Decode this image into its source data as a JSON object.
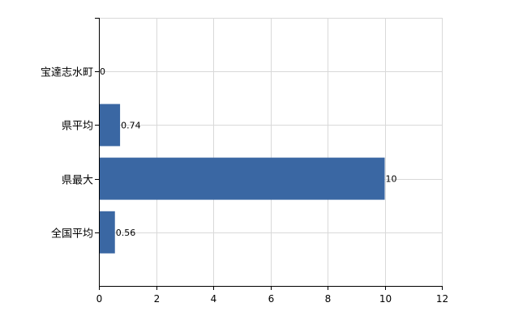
{
  "chart_data": {
    "type": "bar",
    "orientation": "horizontal",
    "categories": [
      "宝達志水町",
      "県平均",
      "県最大",
      "全国平均"
    ],
    "values": [
      0,
      0.74,
      10,
      0.56
    ],
    "data_labels": [
      "0",
      "0.74",
      "10",
      "0.56"
    ],
    "title": "",
    "xlabel": "",
    "ylabel": "",
    "xlim": [
      0,
      12
    ],
    "x_ticks": [
      0,
      2,
      4,
      6,
      8,
      10,
      12
    ],
    "x_tick_labels": [
      "0",
      "2",
      "4",
      "6",
      "8",
      "10",
      "12"
    ],
    "grid": true,
    "legend": "none",
    "bar_color": "#3a67a3",
    "grid_color": "#d9d9d9"
  }
}
